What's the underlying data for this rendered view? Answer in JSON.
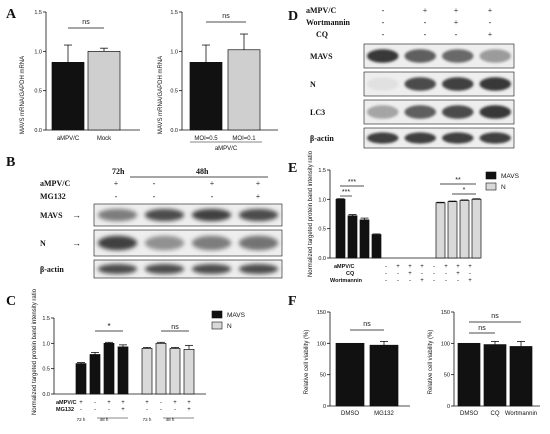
{
  "panels": {
    "A": "A",
    "B": "B",
    "C": "C",
    "D": "D",
    "E": "E",
    "F": "F"
  },
  "colors": {
    "black_bar": "#111111",
    "grey_bar": "#cfcfcf",
    "light_bar": "#d9d9d9"
  },
  "A": {
    "left": {
      "ylabel": "MAVS mRNA/GAPDH mRNA",
      "yticks": [
        "0.0",
        "0.5",
        "1.0",
        "1.5"
      ],
      "sig": "ns",
      "chart_data": {
        "type": "bar",
        "categories": [
          "aMPV/C",
          "Mock"
        ],
        "values": [
          0.86,
          1.0
        ],
        "errors": [
          0.22,
          0.04
        ],
        "ylim": [
          0,
          1.5
        ]
      }
    },
    "right": {
      "ylabel": "MAVS mRNA/GAPDH mRNA",
      "yticks": [
        "0.0",
        "0.5",
        "1.0",
        "1.5"
      ],
      "sig": "ns",
      "group_label": "aMPV/C",
      "chart_data": {
        "type": "bar",
        "categories": [
          "MOI=0.5",
          "MOI=0.1"
        ],
        "values": [
          0.86,
          1.02
        ],
        "errors": [
          0.22,
          0.2
        ],
        "ylim": [
          0,
          1.5
        ]
      }
    }
  },
  "B": {
    "time_72": "72h",
    "time_48": "48h",
    "row_ampv": "aMPV/C",
    "row_mg132": "MG132",
    "ampv_signs": [
      "+",
      "-",
      "+",
      "+"
    ],
    "mg_signs": [
      "-",
      "-",
      "-",
      "+"
    ],
    "bands": [
      "MAVS",
      "N",
      "β-actin"
    ]
  },
  "C": {
    "ylabel": "Normalized targeted protein band intensity ratio",
    "yticks": [
      "0.0",
      "0.5",
      "1.0",
      "1.5"
    ],
    "legend": [
      "MAVS",
      "N"
    ],
    "sig_star": "*",
    "sig_ns": "ns",
    "row_ampv": "aMPV/C",
    "row_mg132": "MG132",
    "ampv_signs": [
      "+",
      "-",
      "+",
      "+",
      "+",
      "-",
      "+",
      "+"
    ],
    "mg_signs": [
      "-",
      "-",
      "-",
      "+",
      "-",
      "-",
      "-",
      "+"
    ],
    "time_labels": [
      "72 h",
      "48 h",
      "72 h",
      "48 h"
    ],
    "chart_data": {
      "type": "bar",
      "series": [
        {
          "name": "MAVS",
          "values": [
            0.6,
            0.78,
            1.0,
            0.93
          ],
          "errors": [
            0.02,
            0.04,
            0.02,
            0.04
          ]
        },
        {
          "name": "N",
          "values": [
            0.9,
            1.0,
            0.9,
            0.88
          ],
          "errors": [
            0.02,
            0.02,
            0.02,
            0.08
          ]
        }
      ],
      "ylim": [
        0,
        1.5
      ]
    }
  },
  "D": {
    "row_ampv": "aMPV/C",
    "row_wort": "Wortmannin",
    "row_cq": "CQ",
    "ampv_signs": [
      "-",
      "+",
      "+",
      "+"
    ],
    "wort_signs": [
      "-",
      "-",
      "+",
      "-"
    ],
    "cq_signs": [
      "-",
      "-",
      "-",
      "+"
    ],
    "bands": [
      "MAVS",
      "N",
      "LC3",
      "β-actin"
    ]
  },
  "E": {
    "ylabel": "Normalized targeted protein band intensity ratio",
    "yticks": [
      "0.0",
      "0.5",
      "1.0",
      "1.5"
    ],
    "legend": [
      "MAVS",
      "N"
    ],
    "sig_labels": [
      "***",
      "***",
      "**",
      "*"
    ],
    "row_ampv": "aMPV/C",
    "row_cq": "CQ",
    "row_wort": "Wortmannin",
    "ampv_signs": [
      "-",
      "+",
      "+",
      "+",
      "-",
      "+",
      "+",
      "+"
    ],
    "cq_signs": [
      "-",
      "-",
      "+",
      "-",
      "-",
      "-",
      "+",
      "-"
    ],
    "wort_signs": [
      "-",
      "-",
      "-",
      "+",
      "-",
      "-",
      "-",
      "+"
    ],
    "chart_data": {
      "type": "bar",
      "series": [
        {
          "name": "MAVS",
          "values": [
            1.0,
            0.72,
            0.65,
            0.4
          ],
          "errors": [
            0.01,
            0.02,
            0.03,
            0.01
          ]
        },
        {
          "name": "N",
          "values": [
            0.94,
            0.96,
            0.98,
            1.0
          ],
          "errors": [
            0.01,
            0.01,
            0.01,
            0.01
          ]
        }
      ],
      "ylim": [
        0,
        1.5
      ]
    }
  },
  "F": {
    "left": {
      "ylabel": "Relative cell viability (%)",
      "yticks": [
        "0",
        "50",
        "100",
        "150"
      ],
      "sig": "ns",
      "chart_data": {
        "type": "bar",
        "categories": [
          "DMSO",
          "MG132"
        ],
        "values": [
          100,
          97
        ],
        "errors": [
          0,
          6
        ],
        "ylim": [
          0,
          150
        ]
      }
    },
    "right": {
      "ylabel": "Relative cell viability (%)",
      "yticks": [
        "0",
        "50",
        "100",
        "150"
      ],
      "sig": [
        "ns",
        "ns"
      ],
      "chart_data": {
        "type": "bar",
        "categories": [
          "DMSO",
          "CQ",
          "Wortmannin"
        ],
        "values": [
          100,
          98,
          95
        ],
        "errors": [
          0,
          5,
          8
        ],
        "ylim": [
          0,
          150
        ]
      }
    }
  }
}
